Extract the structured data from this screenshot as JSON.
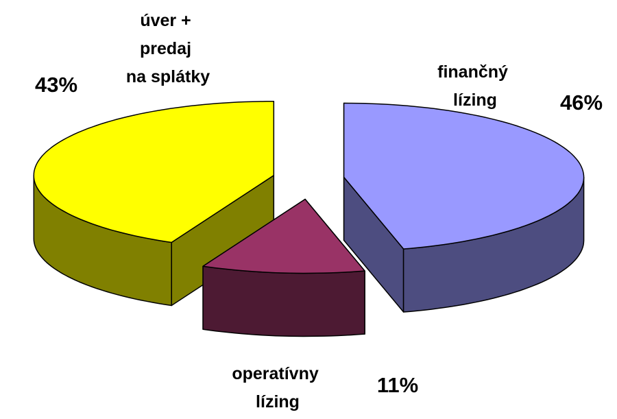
{
  "chart_data": {
    "type": "pie3d",
    "categories": [
      "finančný\nlízing",
      "operatívny\nlízing",
      "úver +\npredaj\nna splátky"
    ],
    "values": [
      46,
      11,
      43
    ],
    "value_labels": [
      "46%",
      "11%",
      "43%"
    ],
    "colors": [
      "#9999ff",
      "#993366",
      "#ffff00"
    ]
  }
}
